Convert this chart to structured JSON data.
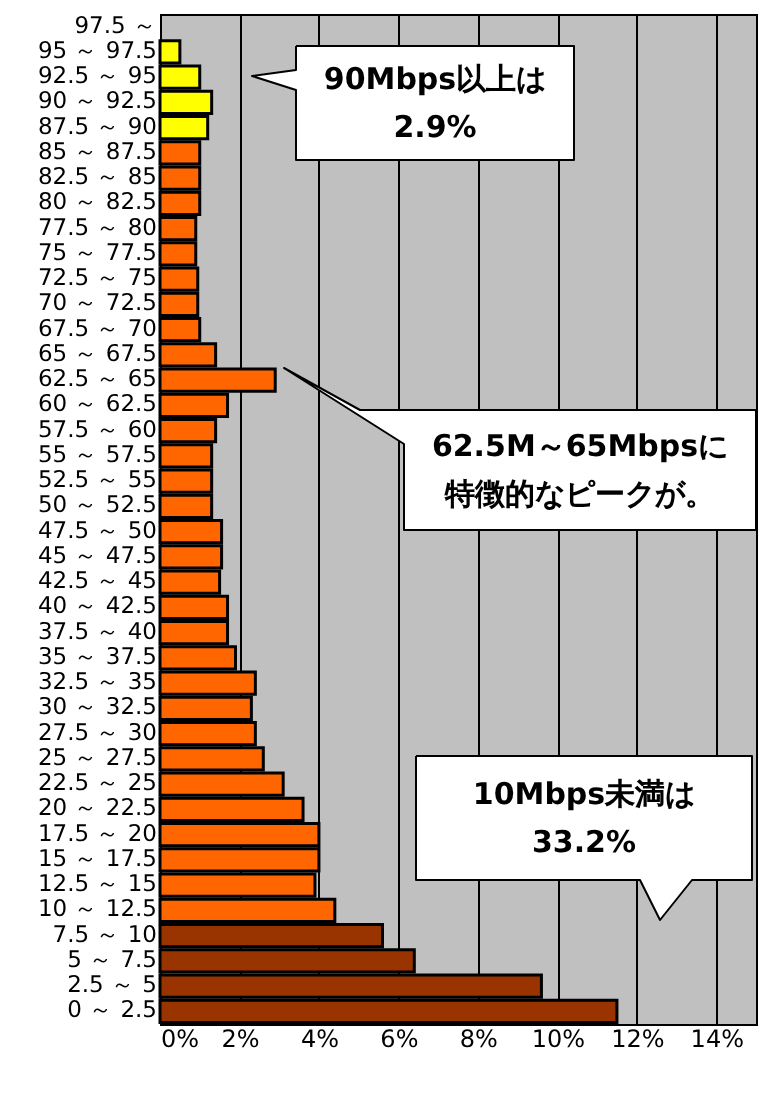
{
  "chart_data": {
    "type": "bar",
    "orientation": "horizontal",
    "categories": [
      "97.5 ～",
      "95 ～ 97.5",
      "92.5 ～ 95",
      "90 ～ 92.5",
      "87.5 ～ 90",
      "85 ～ 87.5",
      "82.5 ～ 85",
      "80 ～ 82.5",
      "77.5 ～ 80",
      "75 ～ 77.5",
      "72.5 ～ 75",
      "70 ～ 72.5",
      "67.5 ～ 70",
      "65 ～ 67.5",
      "62.5 ～ 65",
      "60 ～ 62.5",
      "57.5 ～ 60",
      "55 ～ 57.5",
      "52.5 ～ 55",
      "50 ～ 52.5",
      "47.5 ～ 50",
      "45 ～ 47.5",
      "42.5 ～ 45",
      "40 ～ 42.5",
      "37.5 ～ 40",
      "35 ～ 37.5",
      "32.5 ～ 35",
      "30 ～ 32.5",
      "27.5 ～ 30",
      "25 ～ 27.5",
      "22.5 ～ 25",
      "20 ～ 22.5",
      "17.5 ～ 20",
      "15 ～ 17.5",
      "12.5 ～ 15",
      "10 ～ 12.5",
      "7.5 ～ 10",
      "5 ～ 7.5",
      "2.5 ～ 5",
      "0 ～ 2.5"
    ],
    "values": [
      null,
      0.5,
      1.0,
      1.3,
      1.2,
      1.0,
      1.0,
      1.0,
      0.9,
      0.9,
      0.95,
      0.95,
      1.0,
      1.4,
      2.9,
      1.7,
      1.4,
      1.3,
      1.3,
      1.3,
      1.55,
      1.55,
      1.5,
      1.7,
      1.7,
      1.9,
      2.4,
      2.3,
      2.4,
      2.6,
      3.1,
      3.6,
      4.0,
      4.0,
      3.9,
      4.4,
      5.6,
      6.4,
      9.6,
      11.5
    ],
    "colors": [
      "#ffff00",
      "#ffff00",
      "#ffff00",
      "#ffff00",
      "#ffff00",
      "#ff6600",
      "#ff6600",
      "#ff6600",
      "#ff6600",
      "#ff6600",
      "#ff6600",
      "#ff6600",
      "#ff6600",
      "#ff6600",
      "#ff6600",
      "#ff6600",
      "#ff6600",
      "#ff6600",
      "#ff6600",
      "#ff6600",
      "#ff6600",
      "#ff6600",
      "#ff6600",
      "#ff6600",
      "#ff6600",
      "#ff6600",
      "#ff6600",
      "#ff6600",
      "#ff6600",
      "#ff6600",
      "#ff6600",
      "#ff6600",
      "#ff6600",
      "#ff6600",
      "#ff6600",
      "#ff6600",
      "#993300",
      "#993300",
      "#993300",
      "#993300"
    ],
    "xlim": [
      0,
      15
    ],
    "xticks": [
      {
        "value": 0,
        "label": "0%"
      },
      {
        "value": 2,
        "label": "2%"
      },
      {
        "value": 4,
        "label": "4%"
      },
      {
        "value": 6,
        "label": "6%"
      },
      {
        "value": 8,
        "label": "8%"
      },
      {
        "value": 10,
        "label": "10%"
      },
      {
        "value": 12,
        "label": "12%"
      },
      {
        "value": 14,
        "label": "14%"
      }
    ],
    "grid": "x",
    "annotations": [
      "90Mbps以上は",
      "2.9%",
      "62.5M～65Mbpsに",
      "特徴的なピークが。",
      "10Mbps未満は",
      "33.2%"
    ]
  }
}
